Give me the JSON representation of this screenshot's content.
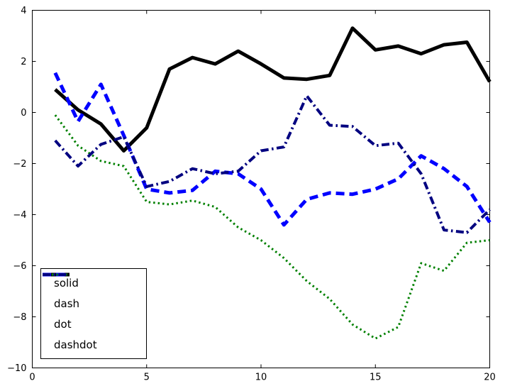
{
  "figure": {
    "background": "#ffffff"
  },
  "axes": {
    "xlim": [
      0,
      20
    ],
    "ylim": [
      -10,
      4
    ],
    "xticks": [
      0,
      5,
      10,
      15,
      20
    ],
    "yticks": [
      -10,
      -8,
      -6,
      -4,
      -2,
      0,
      2,
      4
    ],
    "xtick_labels": [
      "0",
      "5",
      "10",
      "15",
      "20"
    ],
    "ytick_labels": [
      "−10",
      "−8",
      "−6",
      "−4",
      "−2",
      "0",
      "2",
      "4"
    ],
    "frame_color": "#000000",
    "grid": false
  },
  "legend": {
    "position": "lower left",
    "border_color": "#000000",
    "background": "#ffffff",
    "entries": [
      "solid",
      "dash",
      "dot",
      "dashdot"
    ]
  },
  "chart_data": {
    "type": "line",
    "title": "",
    "xlabel": "",
    "ylabel": "",
    "xlim": [
      0,
      20
    ],
    "ylim": [
      -10,
      4
    ],
    "legend_position": "lower left",
    "grid": false,
    "x": [
      1,
      2,
      3,
      4,
      5,
      6,
      7,
      8,
      9,
      10,
      11,
      12,
      13,
      14,
      15,
      16,
      17,
      18,
      19,
      20
    ],
    "series": [
      {
        "name": "solid",
        "color": "#000000",
        "style": "solid",
        "width": 5,
        "values": [
          0.9,
          0.1,
          -0.45,
          -1.5,
          -0.6,
          1.7,
          2.15,
          1.9,
          2.4,
          1.9,
          1.35,
          1.3,
          1.45,
          3.3,
          2.45,
          2.6,
          2.3,
          2.65,
          2.75,
          1.2
        ]
      },
      {
        "name": "dash",
        "color": "#0000ff",
        "style": "dash",
        "width": 5,
        "values": [
          1.55,
          -0.35,
          1.1,
          -0.9,
          -3.0,
          -3.15,
          -3.05,
          -2.3,
          -2.4,
          -3.0,
          -4.4,
          -3.4,
          -3.15,
          -3.2,
          -3.0,
          -2.6,
          -1.7,
          -2.2,
          -2.9,
          -4.3
        ]
      },
      {
        "name": "dot",
        "color": "#008000",
        "style": "dot",
        "width": 3,
        "values": [
          -0.1,
          -1.3,
          -1.9,
          -2.1,
          -3.5,
          -3.6,
          -3.45,
          -3.7,
          -4.5,
          -5.0,
          -5.7,
          -6.6,
          -7.3,
          -8.3,
          -8.85,
          -8.4,
          -5.9,
          -6.2,
          -5.1,
          -5.0
        ]
      },
      {
        "name": "dashdot",
        "color": "#000080",
        "style": "dashdot",
        "width": 4,
        "values": [
          -1.1,
          -2.1,
          -1.25,
          -0.95,
          -2.9,
          -2.7,
          -2.2,
          -2.4,
          -2.3,
          -1.5,
          -1.35,
          0.65,
          -0.5,
          -0.55,
          -1.3,
          -1.2,
          -2.4,
          -4.6,
          -4.7,
          -3.8
        ]
      }
    ]
  }
}
